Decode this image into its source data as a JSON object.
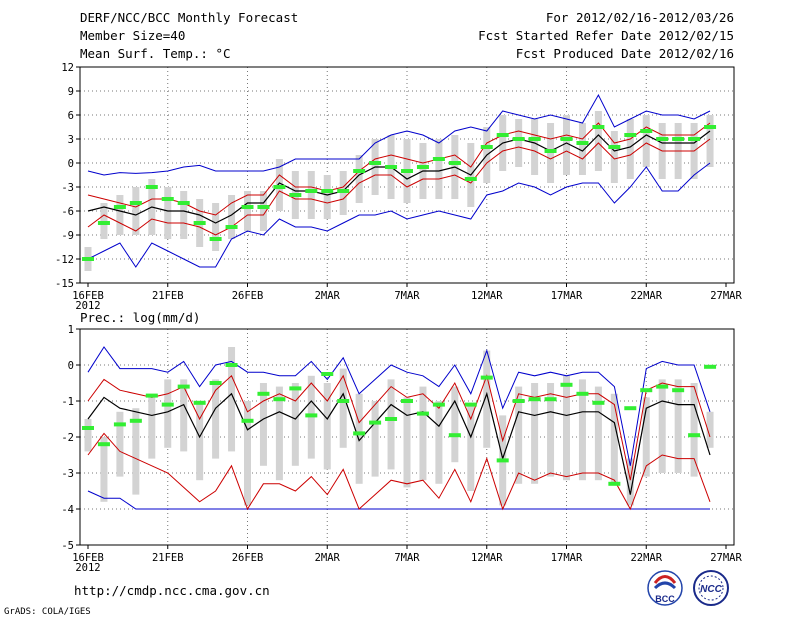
{
  "header": {
    "title": "DERF/NCC/BCC Monthly Forecast",
    "member_size": "Member Size=40",
    "variable": "Mean Surf. Temp.: °C",
    "period": "For 2012/02/16-2012/03/26",
    "started": "Fcst Started Refer Date 2012/02/15",
    "produced": "Fcst Produced Date 2012/02/16"
  },
  "footer": {
    "url": "http://cmdp.ncc.cma.gov.cn",
    "grads": "GrADS: COLA/IGES",
    "logo_bcc": "BCC",
    "logo_ncc": "NCC"
  },
  "colors": {
    "envelope": "#0000cc",
    "spread": "#cc0000",
    "mean": "#000000",
    "box": "#d3d3d3",
    "marker": "#33ee33",
    "grid": "#777777"
  },
  "chart_data": [
    {
      "type": "line",
      "title": "Mean Surf. Temp.: °C",
      "x_tick_labels": [
        "16FEB",
        "21FEB",
        "26FEB",
        "2MAR",
        "7MAR",
        "12MAR",
        "17MAR",
        "22MAR",
        "27MAR"
      ],
      "year_label": "2012",
      "x_tick_days": [
        0,
        5,
        10,
        15,
        20,
        25,
        30,
        35,
        40
      ],
      "ylim": [
        -15,
        12
      ],
      "y_ticks": [
        12,
        9,
        6,
        3,
        0,
        -3,
        -6,
        -9,
        -12,
        -15
      ],
      "days": [
        0,
        1,
        2,
        3,
        4,
        5,
        6,
        7,
        8,
        9,
        10,
        11,
        12,
        13,
        14,
        15,
        16,
        17,
        18,
        19,
        20,
        21,
        22,
        23,
        24,
        25,
        26,
        27,
        28,
        29,
        30,
        31,
        32,
        33,
        34,
        35,
        36,
        37,
        38,
        39
      ],
      "series": [
        {
          "name": "max",
          "values": [
            -1,
            -1.5,
            -1.2,
            -1.3,
            -1.2,
            -1,
            -0.5,
            -0.3,
            -1,
            -1,
            -1,
            -1,
            -0.5,
            0.5,
            0.5,
            0.5,
            0.5,
            0.5,
            2.5,
            3.5,
            4,
            3.5,
            2.5,
            4,
            4.5,
            4,
            6.5,
            6,
            5.5,
            6,
            5.5,
            5,
            8.5,
            4.5,
            5.5,
            6.5,
            6,
            6,
            5.5,
            6.5
          ]
        },
        {
          "name": "upper",
          "values": [
            -4,
            -4.5,
            -5,
            -5.5,
            -4.5,
            -4.5,
            -5,
            -6,
            -6.5,
            -5,
            -4,
            -4,
            -1.5,
            -3,
            -3,
            -3.5,
            -3,
            -1,
            0.5,
            1,
            0.5,
            0,
            0.5,
            1,
            -0.5,
            2.5,
            3.5,
            4,
            3.5,
            3,
            3.5,
            3,
            5,
            2.5,
            3,
            4.5,
            3.5,
            3.5,
            3.5,
            5
          ]
        },
        {
          "name": "mean",
          "values": [
            -6,
            -5.5,
            -6,
            -6.5,
            -5.5,
            -6,
            -6,
            -6.5,
            -7.5,
            -6.5,
            -5,
            -5,
            -2.5,
            -3.5,
            -3.5,
            -4,
            -3.5,
            -1.5,
            -0.5,
            -0.5,
            -2,
            -1,
            -1,
            -0.5,
            -1.5,
            1,
            2.5,
            3,
            2.5,
            1.5,
            2.5,
            1.5,
            3.5,
            1.5,
            2,
            3.5,
            2.5,
            2.5,
            2.5,
            4
          ]
        },
        {
          "name": "lower",
          "values": [
            -8,
            -6.5,
            -7.5,
            -8.5,
            -7,
            -7.5,
            -7.5,
            -8,
            -9,
            -8,
            -6.5,
            -6.5,
            -3.5,
            -4.5,
            -4.5,
            -5,
            -4.5,
            -2.5,
            -1.5,
            -1.5,
            -3,
            -2,
            -2,
            -1.5,
            -2.5,
            0,
            1.5,
            2,
            1.5,
            0.5,
            1.5,
            0.5,
            2.5,
            0.5,
            1,
            2.5,
            1.5,
            1.5,
            1.5,
            3
          ]
        },
        {
          "name": "min",
          "values": [
            -12,
            -11,
            -10,
            -13,
            -10,
            -11,
            -12,
            -13,
            -13,
            -9.5,
            -8.5,
            -9,
            -7,
            -8,
            -8,
            -8.5,
            -7.5,
            -6.5,
            -6.5,
            -6,
            -7,
            -6.5,
            -6,
            -6.5,
            -7,
            -4,
            -3.5,
            -2.5,
            -3,
            -4,
            -3,
            -2.5,
            -2.5,
            -5,
            -3,
            -0.5,
            -3.5,
            -3.5,
            -1.5,
            0
          ]
        },
        {
          "name": "box_high",
          "values": [
            -10.5,
            -5,
            -4,
            -3,
            -2,
            -3,
            -3.5,
            -4.5,
            -5,
            -4,
            -3.5,
            -3.5,
            0.5,
            -1,
            -1,
            -1.5,
            -1,
            1,
            3,
            3.5,
            3,
            2.5,
            3,
            3.5,
            2.5,
            4.5,
            6,
            5.5,
            5.5,
            5,
            6,
            5,
            6.5,
            4,
            5.5,
            6,
            5,
            5,
            5,
            6
          ]
        },
        {
          "name": "box_low",
          "values": [
            -13.5,
            -9.5,
            -9,
            -9,
            -9,
            -9.5,
            -9.5,
            -10.5,
            -11,
            -9.5,
            -8.5,
            -8.5,
            -6,
            -7,
            -7,
            -7,
            -6.5,
            -5,
            -4,
            -4.5,
            -5,
            -4.5,
            -4.5,
            -4.5,
            -5.5,
            -2.5,
            -1,
            -0.5,
            -1.5,
            -2.5,
            -1.5,
            -1.5,
            -1,
            -2.5,
            -2,
            -0.5,
            -2,
            -2,
            -2,
            -0.5
          ]
        },
        {
          "name": "control",
          "values": [
            -12,
            -7.5,
            -5.5,
            -5,
            -3,
            -4.5,
            -5,
            -7.5,
            -9.5,
            -8,
            -5.5,
            -5.5,
            -3,
            -4,
            -3.5,
            -3.5,
            -3.5,
            -1,
            0,
            -0.5,
            -1,
            -0.5,
            0.5,
            0,
            -2,
            2,
            3.5,
            3,
            3,
            1.5,
            3,
            2.5,
            4.5,
            2,
            3.5,
            4,
            3,
            3,
            3,
            4.5
          ]
        }
      ]
    },
    {
      "type": "line",
      "title": "Prec.: log(mm/d)",
      "x_tick_labels": [
        "16FEB",
        "21FEB",
        "26FEB",
        "2MAR",
        "7MAR",
        "12MAR",
        "17MAR",
        "22MAR",
        "27MAR"
      ],
      "year_label": "2012",
      "x_tick_days": [
        0,
        5,
        10,
        15,
        20,
        25,
        30,
        35,
        40
      ],
      "ylim": [
        -5,
        1
      ],
      "y_ticks": [
        1,
        0,
        -1,
        -2,
        -3,
        -4,
        -5
      ],
      "days": [
        0,
        1,
        2,
        3,
        4,
        5,
        6,
        7,
        8,
        9,
        10,
        11,
        12,
        13,
        14,
        15,
        16,
        17,
        18,
        19,
        20,
        21,
        22,
        23,
        24,
        25,
        26,
        27,
        28,
        29,
        30,
        31,
        32,
        33,
        34,
        35,
        36,
        37,
        38,
        39
      ],
      "series": [
        {
          "name": "max",
          "values": [
            -0.2,
            0.5,
            -0.1,
            -0.1,
            -0.1,
            -0.2,
            0.1,
            -0.6,
            0,
            0.1,
            -0.2,
            -0.2,
            -0.3,
            -0.3,
            0.1,
            -0.4,
            0.2,
            -0.8,
            -0.4,
            0,
            -0.2,
            -0.3,
            -0.6,
            0,
            -0.8,
            0.4,
            -1.2,
            -0.2,
            -0.3,
            -0.2,
            -0.3,
            -0.2,
            -0.2,
            -0.6,
            -2.8,
            -0.1,
            0.1,
            0,
            0,
            -1.3
          ]
        },
        {
          "name": "upper",
          "values": [
            -1,
            -0.4,
            -0.7,
            -0.8,
            -0.9,
            -0.8,
            -0.6,
            -1.5,
            -0.7,
            -0.3,
            -1.3,
            -1,
            -0.8,
            -1,
            -0.5,
            -1,
            -0.3,
            -1.6,
            -1.1,
            -0.6,
            -0.9,
            -0.8,
            -1.2,
            -0.5,
            -1.5,
            -0.3,
            -2.1,
            -0.8,
            -0.9,
            -0.8,
            -0.9,
            -0.8,
            -0.8,
            -1.1,
            -3.2,
            -0.7,
            -0.5,
            -0.6,
            -0.6,
            -2
          ]
        },
        {
          "name": "mean",
          "values": [
            -1.5,
            -0.9,
            -1.2,
            -1.3,
            -1.4,
            -1.3,
            -1.1,
            -2,
            -1.2,
            -0.8,
            -1.8,
            -1.5,
            -1.3,
            -1.5,
            -1,
            -1.5,
            -0.8,
            -2.1,
            -1.6,
            -1.1,
            -1.4,
            -1.3,
            -1.7,
            -1,
            -2,
            -0.8,
            -2.6,
            -1.3,
            -1.4,
            -1.3,
            -1.4,
            -1.3,
            -1.3,
            -1.6,
            -3.6,
            -1.2,
            -1,
            -1.1,
            -1.1,
            -2.5
          ]
        },
        {
          "name": "lower",
          "values": [
            -2.5,
            -1.9,
            -2.4,
            -2.6,
            -2.8,
            -3,
            -3.4,
            -3.8,
            -3.5,
            -2.8,
            -4,
            -3.3,
            -3.3,
            -3.5,
            -3.1,
            -3.6,
            -2.9,
            -4,
            -3.6,
            -3.2,
            -3.3,
            -3.2,
            -3.7,
            -2.9,
            -3.8,
            -2.6,
            -4,
            -3,
            -3.2,
            -3,
            -3.1,
            -3,
            -3,
            -3.2,
            -4,
            -2.8,
            -2.5,
            -2.6,
            -2.6,
            -3.8
          ]
        },
        {
          "name": "min",
          "values": [
            -3.5,
            -3.7,
            -3.7,
            -4,
            -4,
            -4,
            -4,
            -4,
            -4,
            -4,
            -4,
            -4,
            -4,
            -4,
            -4,
            -4,
            -4,
            -4,
            -4,
            -4,
            -4,
            -4,
            -4,
            -4,
            -4,
            -4,
            -4,
            -4,
            -4,
            -4,
            -4,
            -4,
            -4,
            -4,
            -4,
            -4,
            -4,
            -4,
            -4,
            -4
          ]
        },
        {
          "name": "box_high",
          "values": [
            -1.5,
            -2,
            -1.3,
            -1.2,
            -0.9,
            -0.4,
            -0.4,
            -1,
            -0.4,
            0.5,
            -1,
            -0.5,
            -0.6,
            -0.5,
            -0.3,
            -0.5,
            -0.1,
            -0.8,
            -1,
            -0.4,
            -0.9,
            -0.6,
            -1,
            -0.6,
            -1.1,
            0.4,
            -1.4,
            -0.6,
            -0.5,
            -0.5,
            -0.3,
            -0.4,
            -0.6,
            -0.8,
            -2.6,
            -0.9,
            -0.4,
            -0.4,
            -0.5,
            -1.3
          ]
        },
        {
          "name": "box_low",
          "values": [
            -2.4,
            -3.8,
            -3.1,
            -3.6,
            -2.6,
            -2.3,
            -2.4,
            -3.2,
            -2.6,
            -2.4,
            -3.9,
            -2.8,
            -3.2,
            -2.8,
            -2.6,
            -2.9,
            -2.3,
            -3.3,
            -3.1,
            -2.9,
            -3.4,
            -3.2,
            -3.3,
            -2.7,
            -3.5,
            -2.3,
            -3.9,
            -3.3,
            -3.3,
            -3.1,
            -3.2,
            -3.2,
            -3.2,
            -3.3,
            -3.9,
            -3.1,
            -3,
            -3,
            -3.1,
            -2.3
          ]
        },
        {
          "name": "control",
          "values": [
            -1.75,
            -2.2,
            -1.65,
            -1.55,
            -0.85,
            -1.1,
            -0.6,
            -1.05,
            -0.5,
            0,
            -1.55,
            -0.8,
            -0.95,
            -0.65,
            -1.4,
            -0.25,
            -1,
            -1.9,
            -1.6,
            -1.5,
            -1,
            -1.35,
            -1.1,
            -1.95,
            -1.1,
            -0.35,
            -2.65,
            -1,
            -0.95,
            -0.95,
            -0.55,
            -0.8,
            -1.05,
            -3.3,
            -1.2,
            -0.7,
            -0.6,
            -0.7,
            -1.95,
            -0.05
          ]
        }
      ]
    }
  ]
}
